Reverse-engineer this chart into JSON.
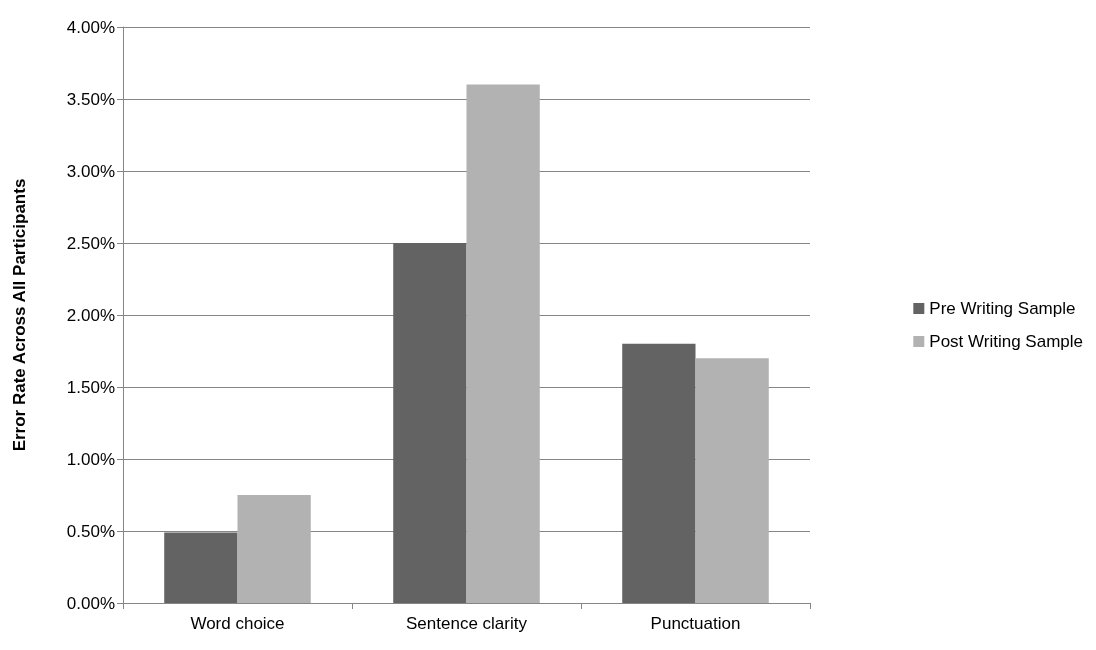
{
  "chart_data": {
    "type": "bar",
    "ylabel": "Error Rate Across All Participants",
    "categories": [
      "Word choice",
      "Sentence clarity",
      "Punctuation"
    ],
    "series": [
      {
        "name": "Pre Writing Sample",
        "color": "#636363",
        "values": [
          0.49,
          2.5,
          1.8
        ]
      },
      {
        "name": "Post Writing Sample",
        "color": "#b2b2b2",
        "values": [
          0.75,
          3.6,
          1.7
        ]
      }
    ],
    "ylim": [
      0,
      4
    ],
    "yticks": [
      {
        "value": 0,
        "label": "0.00%"
      },
      {
        "value": 0.5,
        "label": "0.50%"
      },
      {
        "value": 1,
        "label": "1.00%"
      },
      {
        "value": 1.5,
        "label": "1.50%"
      },
      {
        "value": 2,
        "label": "2.00%"
      },
      {
        "value": 2.5,
        "label": "2.50%"
      },
      {
        "value": 3,
        "label": "3.00%"
      },
      {
        "value": 3.5,
        "label": "3.50%"
      },
      {
        "value": 4,
        "label": "4.00%"
      }
    ],
    "grid": "y",
    "legend": "right"
  }
}
